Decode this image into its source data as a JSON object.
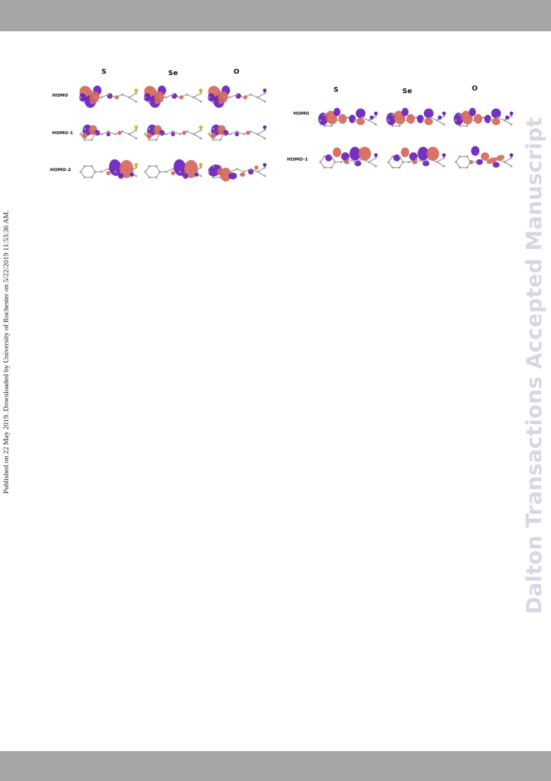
{
  "header_bar": {},
  "footer_bar": {},
  "side_note": "Published on 22 May 2019. Downloaded by University of Rochester on 5/22/2019 11:53:36 AM.",
  "watermark": "Dalton Transactions Accepted Manuscript",
  "colors": {
    "lobe_red": "#d9665a",
    "lobe_purple": "#6a1fbd",
    "atom_grey": "#9a9a9a",
    "sulfur": "#d8b020"
  },
  "figure_left": {
    "columns": [
      "S",
      "Se",
      "O"
    ],
    "rows": [
      "HOMO",
      "HOMO-1",
      "HOMO-2"
    ]
  },
  "figure_right": {
    "columns": [
      "S",
      "Se",
      "O"
    ],
    "rows": [
      "HOMO",
      "HOMO-1"
    ]
  }
}
